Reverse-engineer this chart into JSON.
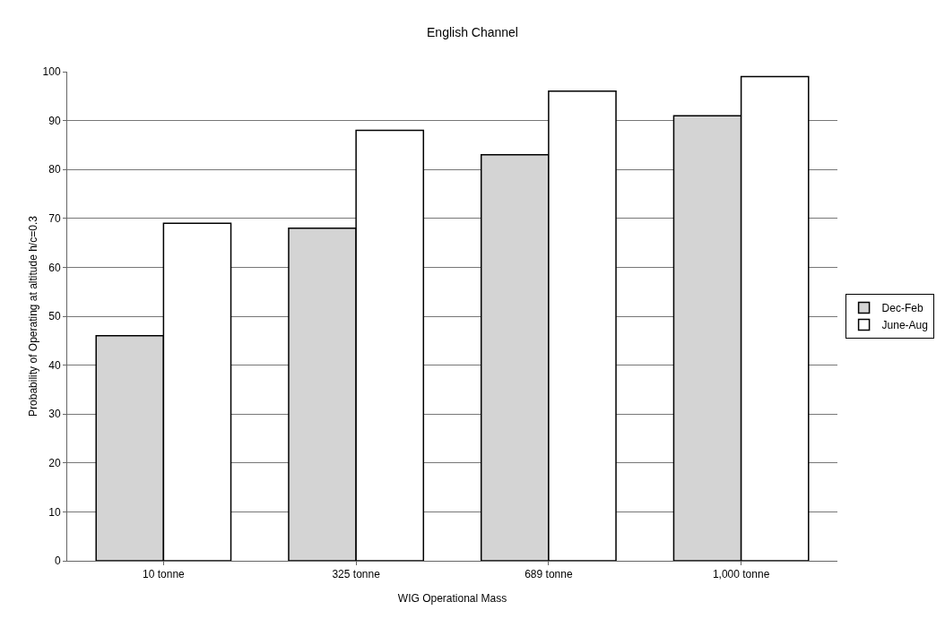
{
  "chart_data": {
    "type": "bar",
    "title": "English Channel",
    "xlabel": "WIG Operational Mass",
    "ylabel": "Probability of Operating at altitude h/c=0.3",
    "categories": [
      "10 tonne",
      "325 tonne",
      "689 tonne",
      "1,000 tonne"
    ],
    "series": [
      {
        "name": "Dec-Feb",
        "color": "#d4d4d4",
        "values": [
          46,
          68,
          83,
          91
        ]
      },
      {
        "name": "June-Aug",
        "color": "#ffffff",
        "values": [
          69,
          88,
          96,
          99
        ]
      }
    ],
    "ylim": [
      0,
      100
    ],
    "yticks": [
      0,
      10,
      20,
      30,
      40,
      50,
      60,
      70,
      80,
      90,
      100
    ],
    "grid": "y",
    "legend": "right"
  }
}
